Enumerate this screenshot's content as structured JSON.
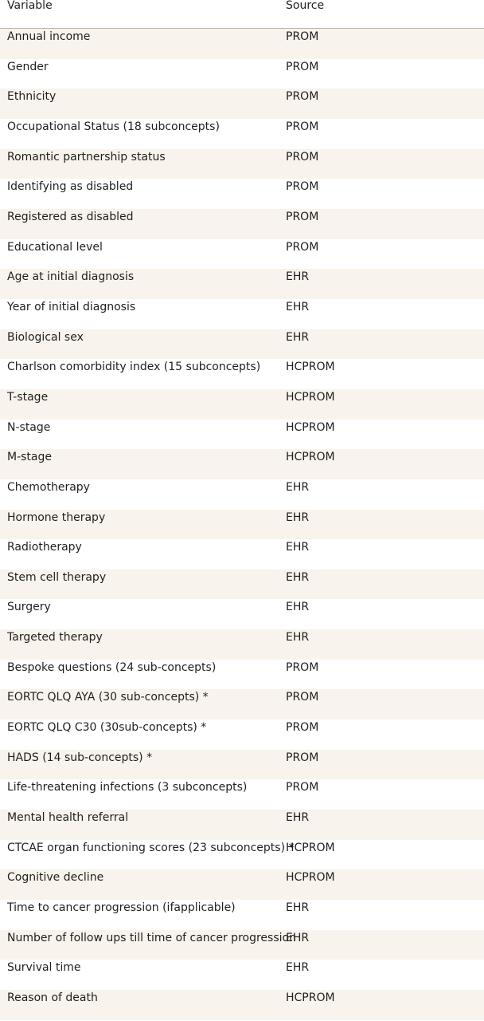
{
  "table": {
    "headers": {
      "variable": "Variable",
      "source": "Source"
    },
    "rows": [
      {
        "variable": "Annual income",
        "source": "PROM"
      },
      {
        "variable": "Gender",
        "source": "PROM"
      },
      {
        "variable": "Ethnicity",
        "source": "PROM"
      },
      {
        "variable": "Occupational Status (18 subconcepts)",
        "source": "PROM"
      },
      {
        "variable": "Romantic partnership status",
        "source": "PROM"
      },
      {
        "variable": "Identifying as disabled",
        "source": "PROM"
      },
      {
        "variable": "Registered as disabled",
        "source": "PROM"
      },
      {
        "variable": "Educational level",
        "source": "PROM"
      },
      {
        "variable": "Age at initial diagnosis",
        "source": "EHR"
      },
      {
        "variable": "Year of initial diagnosis",
        "source": "EHR"
      },
      {
        "variable": "Biological sex",
        "source": "EHR"
      },
      {
        "variable": "Charlson comorbidity index (15 subconcepts)",
        "source": "HCPROM"
      },
      {
        "variable": "T-stage",
        "source": "HCPROM"
      },
      {
        "variable": "N-stage",
        "source": "HCPROM"
      },
      {
        "variable": "M-stage",
        "source": "HCPROM"
      },
      {
        "variable": "Chemotherapy",
        "source": "EHR"
      },
      {
        "variable": "Hormone therapy",
        "source": "EHR"
      },
      {
        "variable": "Radiotherapy",
        "source": "EHR"
      },
      {
        "variable": "Stem cell therapy",
        "source": "EHR"
      },
      {
        "variable": "Surgery",
        "source": "EHR"
      },
      {
        "variable": "Targeted therapy",
        "source": "EHR"
      },
      {
        "variable": "Bespoke questions (24 sub-concepts)",
        "source": "PROM"
      },
      {
        "variable": "EORTC QLQ AYA (30 sub-concepts) *",
        "source": "PROM"
      },
      {
        "variable": "EORTC QLQ C30 (30sub-concepts) *",
        "source": "PROM"
      },
      {
        "variable": "HADS (14 sub-concepts) *",
        "source": "PROM"
      },
      {
        "variable": "Life-threatening infections (3 subconcepts)",
        "source": "PROM"
      },
      {
        "variable": "Mental health referral",
        "source": "EHR"
      },
      {
        "variable": "CTCAE organ functioning scores (23 subconcepts) *",
        "source": "HCPROM"
      },
      {
        "variable": "Cognitive decline",
        "source": "HCPROM"
      },
      {
        "variable": "Time to cancer progression (ifapplicable)",
        "source": "EHR"
      },
      {
        "variable": "Number of follow ups till time of cancer progression",
        "source": "EHR"
      },
      {
        "variable": "Survival time",
        "source": "EHR"
      },
      {
        "variable": "Reason of death",
        "source": "HCPROM"
      }
    ]
  }
}
